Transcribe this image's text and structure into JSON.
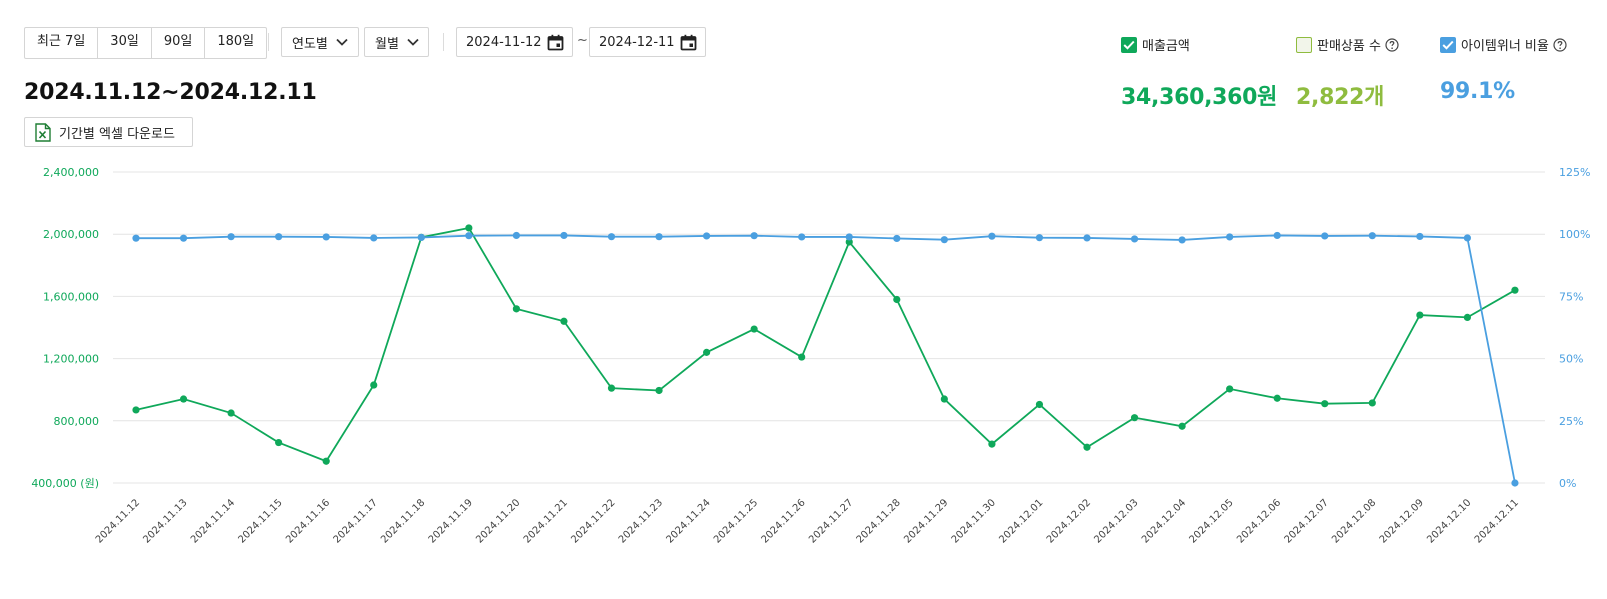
{
  "period_buttons": [
    "최근 7일",
    "30일",
    "90일",
    "180일"
  ],
  "selects": {
    "year": "연도별",
    "month": "월별"
  },
  "date_range": {
    "start": "2024-11-12",
    "tilde": "~",
    "end": "2024-12-11"
  },
  "range_title": "2024.11.12~2024.12.11",
  "excel_button": "기간별 엑셀 다운로드",
  "legend": [
    {
      "label": "매출금액",
      "checked": true,
      "color": "#0fa85a"
    },
    {
      "label": "판매상품 수",
      "checked": false,
      "color": "#8fbc3f",
      "help": true
    },
    {
      "label": "아이템위너 비율",
      "checked": true,
      "color": "#4a9fe0",
      "help": true
    }
  ],
  "metrics": {
    "sales": "34,360,360원",
    "products": "2,822개",
    "winner_ratio": "99.1%"
  },
  "colors": {
    "sales": "#0fa85a",
    "products": "#8fbc3f",
    "winner": "#4a9fe0",
    "grid": "#e4e4e4"
  },
  "chart_data": {
    "type": "line",
    "x": [
      "2024.11.12",
      "2024.11.13",
      "2024.11.14",
      "2024.11.15",
      "2024.11.16",
      "2024.11.17",
      "2024.11.18",
      "2024.11.19",
      "2024.11.20",
      "2024.11.21",
      "2024.11.22",
      "2024.11.23",
      "2024.11.24",
      "2024.11.25",
      "2024.11.26",
      "2024.11.27",
      "2024.11.28",
      "2024.11.29",
      "2024.11.30",
      "2024.12.01",
      "2024.12.02",
      "2024.12.03",
      "2024.12.04",
      "2024.12.05",
      "2024.12.06",
      "2024.12.07",
      "2024.12.08",
      "2024.12.09",
      "2024.12.10",
      "2024.12.11"
    ],
    "y_left": {
      "ticks": [
        400000,
        800000,
        1200000,
        1600000,
        2000000,
        2400000
      ],
      "tick_labels": [
        "400,000 (원)",
        "800,000",
        "1,200,000",
        "1,600,000",
        "2,000,000",
        "2,400,000"
      ],
      "range": [
        400000,
        2400000
      ]
    },
    "y_right": {
      "ticks": [
        0,
        25,
        50,
        75,
        100,
        125
      ],
      "tick_labels": [
        "0%",
        "25%",
        "50%",
        "75%",
        "100%",
        "125%"
      ],
      "range": [
        0,
        125
      ]
    },
    "series": [
      {
        "name": "매출금액",
        "axis": "left",
        "color": "#0fa85a",
        "values": [
          870000,
          940000,
          850000,
          660000,
          540000,
          1030000,
          1980000,
          2040000,
          1520000,
          1440000,
          1010000,
          995000,
          1240000,
          1390000,
          1210000,
          1950000,
          1580000,
          940000,
          650000,
          905000,
          630000,
          820000,
          765000,
          1005000,
          945000,
          910000,
          915000,
          1480000,
          1465000,
          1640000
        ]
      },
      {
        "name": "아이템위너 비율",
        "axis": "right",
        "color": "#4a9fe0",
        "values": [
          98.4,
          98.4,
          99.0,
          99.0,
          98.9,
          98.5,
          98.7,
          99.4,
          99.5,
          99.5,
          99.0,
          99.0,
          99.3,
          99.4,
          98.9,
          98.9,
          98.3,
          97.8,
          99.2,
          98.6,
          98.5,
          98.1,
          97.7,
          98.9,
          99.5,
          99.3,
          99.4,
          99.1,
          98.5,
          0
        ]
      }
    ],
    "grid": true
  }
}
